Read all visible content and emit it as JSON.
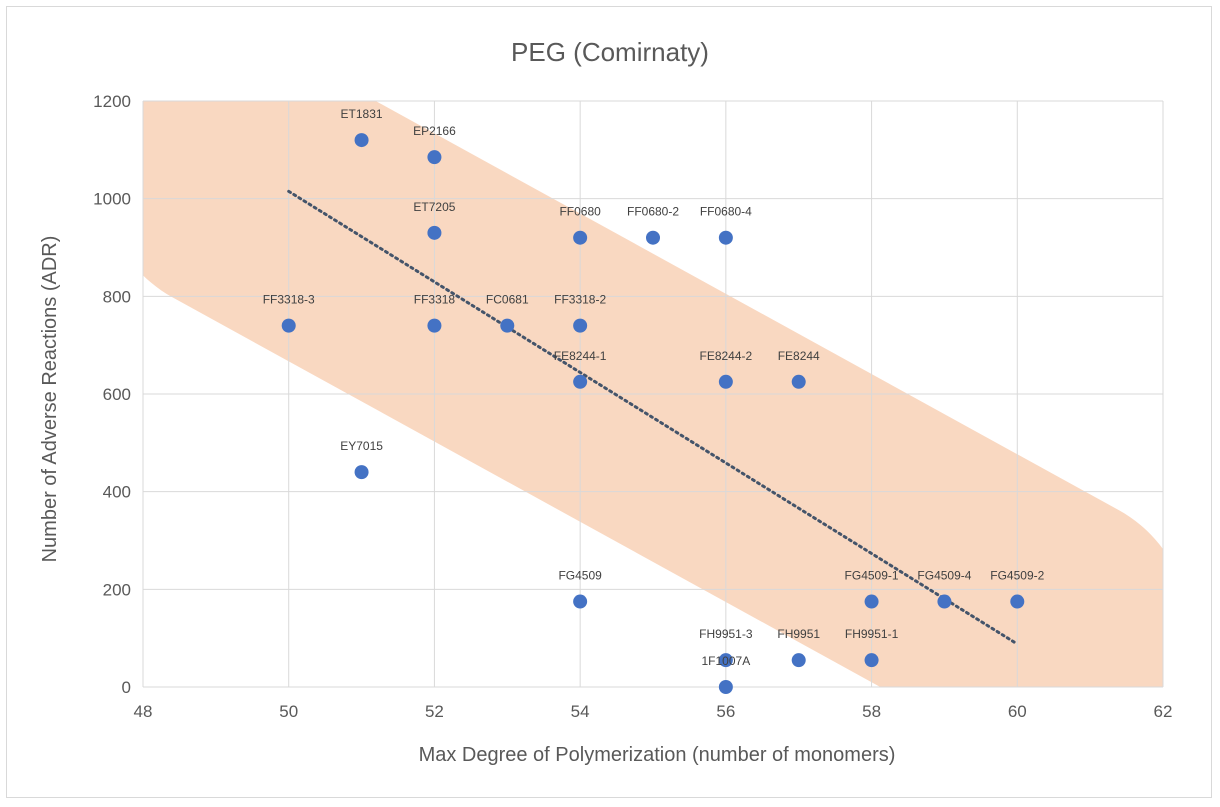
{
  "chart_data": {
    "type": "scatter",
    "title": "PEG (Comirnaty)",
    "xlabel": "Max Degree of Polymerization (number of monomers)",
    "ylabel": "Number of Adverse Reactions (ADR)",
    "xlim": [
      48,
      62
    ],
    "ylim": [
      0,
      1200
    ],
    "x_ticks": [
      48,
      50,
      52,
      54,
      56,
      58,
      60,
      62
    ],
    "y_ticks": [
      0,
      200,
      400,
      600,
      800,
      1000,
      1200
    ],
    "x_tick_labels": [
      "48",
      "50",
      "52",
      "54",
      "56",
      "58",
      "60",
      "62"
    ],
    "y_tick_labels": [
      "0",
      "200",
      "400",
      "600",
      "800",
      "1000",
      "1200"
    ],
    "grid": true,
    "legend": "none",
    "colors": {
      "points": "#4472c4",
      "trendline": "#44546a",
      "band": "#f8cbad"
    },
    "series": [
      {
        "points": [
          {
            "x": 51,
            "y": 1120,
            "label": "ET1831"
          },
          {
            "x": 52,
            "y": 1085,
            "label": "EP2166"
          },
          {
            "x": 52,
            "y": 930,
            "label": "ET7205"
          },
          {
            "x": 54,
            "y": 920,
            "label": "FF0680"
          },
          {
            "x": 55,
            "y": 920,
            "label": "FF0680-2"
          },
          {
            "x": 56,
            "y": 920,
            "label": "FF0680-4"
          },
          {
            "x": 50,
            "y": 740,
            "label": "FF3318-3"
          },
          {
            "x": 52,
            "y": 740,
            "label": "FF3318"
          },
          {
            "x": 53,
            "y": 740,
            "label": "FC0681"
          },
          {
            "x": 54,
            "y": 740,
            "label": "FF3318-2"
          },
          {
            "x": 54,
            "y": 625,
            "label": "FE8244-1"
          },
          {
            "x": 56,
            "y": 625,
            "label": "FE8244-2"
          },
          {
            "x": 57,
            "y": 625,
            "label": "FE8244"
          },
          {
            "x": 51,
            "y": 440,
            "label": "EY7015"
          },
          {
            "x": 54,
            "y": 175,
            "label": "FG4509"
          },
          {
            "x": 58,
            "y": 175,
            "label": "FG4509-1"
          },
          {
            "x": 59,
            "y": 175,
            "label": "FG4509-4"
          },
          {
            "x": 60,
            "y": 175,
            "label": "FG4509-2"
          },
          {
            "x": 56,
            "y": 55,
            "label": "FH9951-3"
          },
          {
            "x": 57,
            "y": 55,
            "label": "FH9951"
          },
          {
            "x": 58,
            "y": 55,
            "label": "FH9951-1"
          },
          {
            "x": 56,
            "y": 0,
            "label": "1F1007A"
          }
        ]
      }
    ],
    "trendline": {
      "style": "dotted",
      "x_start": 50,
      "x_end": 60,
      "y_start": 1015,
      "y_end": 88
    },
    "band": {
      "style": "shaded",
      "x_start": 49.3,
      "x_end": 60.5,
      "y_start": 1040,
      "y_end": 120
    }
  }
}
